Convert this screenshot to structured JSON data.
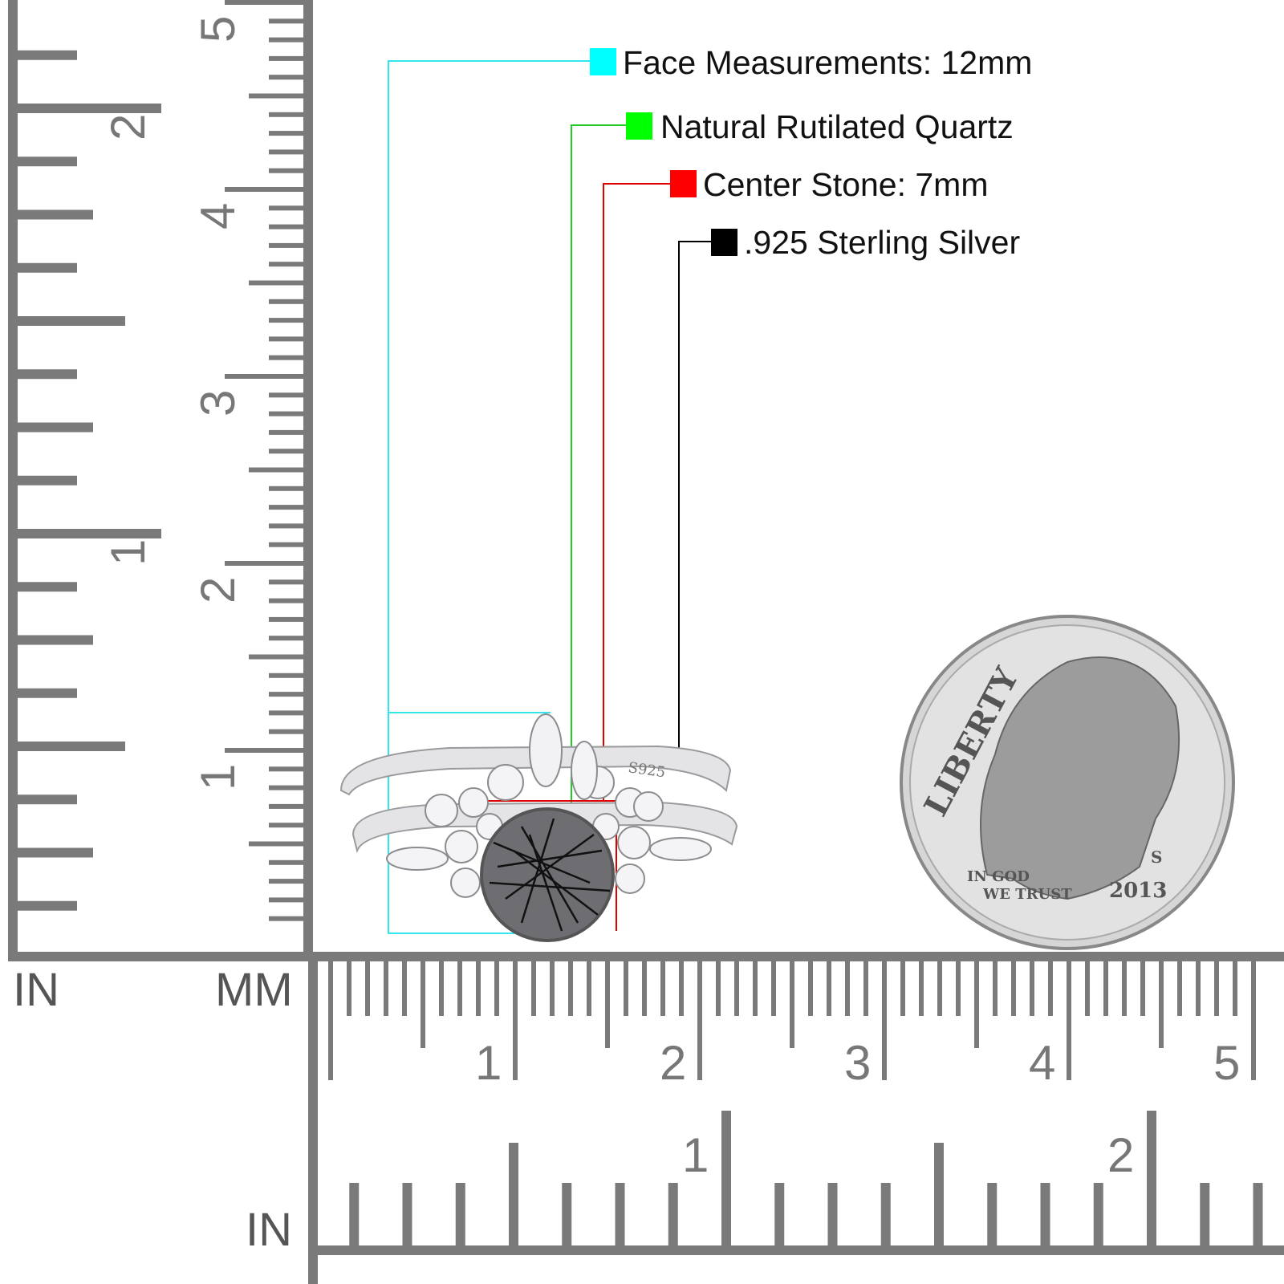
{
  "legend": [
    {
      "label": "Face Measurements: 12mm",
      "color": "#00ffff"
    },
    {
      "label": "Natural Rutilated Quartz",
      "color": "#00ff00"
    },
    {
      "label": "Center Stone: 7mm",
      "color": "#ff0000"
    },
    {
      "label": ".925 Sterling Silver",
      "color": "#000000"
    }
  ],
  "rulers": {
    "vertical": {
      "inch_unit": "IN",
      "mm_unit": "MM",
      "inch_labels": [
        "1",
        "2"
      ],
      "cm_labels": [
        "1",
        "2",
        "3",
        "4",
        "5"
      ]
    },
    "horizontal": {
      "inch_unit": "IN",
      "cm_labels": [
        "1",
        "2",
        "3",
        "4",
        "5"
      ],
      "inch_labels": [
        "1",
        "2"
      ]
    },
    "color": "#7a7a7a"
  },
  "ring": {
    "stamp": "S925",
    "stone_color": "#6e6e72"
  },
  "coin": {
    "liberty": "LIBERTY",
    "motto_1": "IN GOD",
    "motto_2": "WE TRUST",
    "year": "2013",
    "mint": "S"
  }
}
